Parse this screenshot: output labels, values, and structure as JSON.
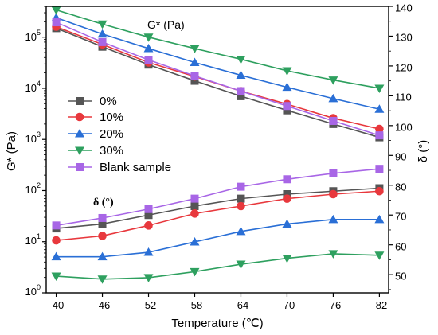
{
  "chart_data": {
    "type": "line",
    "x": [
      40,
      46,
      52,
      58,
      64,
      70,
      76,
      82
    ],
    "xlabel": "Temperature (℃)",
    "x_ticks": [
      "40",
      "46",
      "52",
      "58",
      "64",
      "70",
      "76",
      "82"
    ],
    "left_axis": {
      "label": "G* (Pa)",
      "scale": "log",
      "range": [
        1,
        400000
      ],
      "tick_labels": [
        {
          "base": "10",
          "exp": "0",
          "value": 1
        },
        {
          "base": "10",
          "exp": "1",
          "value": 10
        },
        {
          "base": "10",
          "exp": "2",
          "value": 100
        },
        {
          "base": "10",
          "exp": "3",
          "value": 1000
        },
        {
          "base": "10",
          "exp": "4",
          "value": 10000
        },
        {
          "base": "10",
          "exp": "5",
          "value": 100000
        }
      ]
    },
    "right_axis": {
      "label": "δ (°)",
      "scale": "linear",
      "range": [
        43.9,
        140
      ],
      "ticks": [
        "50",
        "60",
        "70",
        "80",
        "90",
        "100",
        "110",
        "120",
        "130",
        "140"
      ]
    },
    "annotations": {
      "g_star": "G* (Pa)",
      "delta": "δ (°)"
    },
    "series": [
      {
        "name": "0%",
        "color": "#555555",
        "marker": "square",
        "g_star": [
          150000,
          65000,
          29000,
          14000,
          7000,
          3700,
          2000,
          1100
        ],
        "delta": [
          65.5,
          67,
          70,
          73,
          75.5,
          77,
          78,
          79
        ]
      },
      {
        "name": "10%",
        "color": "#e8383d",
        "marker": "circle",
        "g_star": [
          160000,
          72000,
          32000,
          17000,
          8800,
          4900,
          2600,
          1600
        ],
        "delta": [
          61.5,
          63,
          66.5,
          70.5,
          73,
          75.5,
          77,
          78
        ]
      },
      {
        "name": "20%",
        "color": "#2a6fd6",
        "marker": "triangle-up",
        "g_star": [
          240000,
          115000,
          60000,
          32000,
          18000,
          10500,
          6300,
          3900
        ],
        "delta": [
          56,
          56,
          57.5,
          61,
          64.5,
          67,
          68.5,
          68.5
        ]
      },
      {
        "name": "30%",
        "color": "#2ea05f",
        "marker": "triangle-down",
        "g_star": [
          340000,
          180000,
          100000,
          60000,
          37000,
          22000,
          14500,
          10000
        ],
        "delta": [
          49.5,
          48.5,
          49,
          51,
          53.5,
          55.5,
          57,
          56.5
        ]
      },
      {
        "name": "Blank sample",
        "color": "#a866e6",
        "marker": "square",
        "g_star": [
          195000,
          80000,
          36000,
          17500,
          8800,
          4500,
          2300,
          1200
        ],
        "delta": [
          66.5,
          69,
          72,
          75.5,
          79.5,
          82,
          84,
          85.5
        ]
      }
    ]
  }
}
